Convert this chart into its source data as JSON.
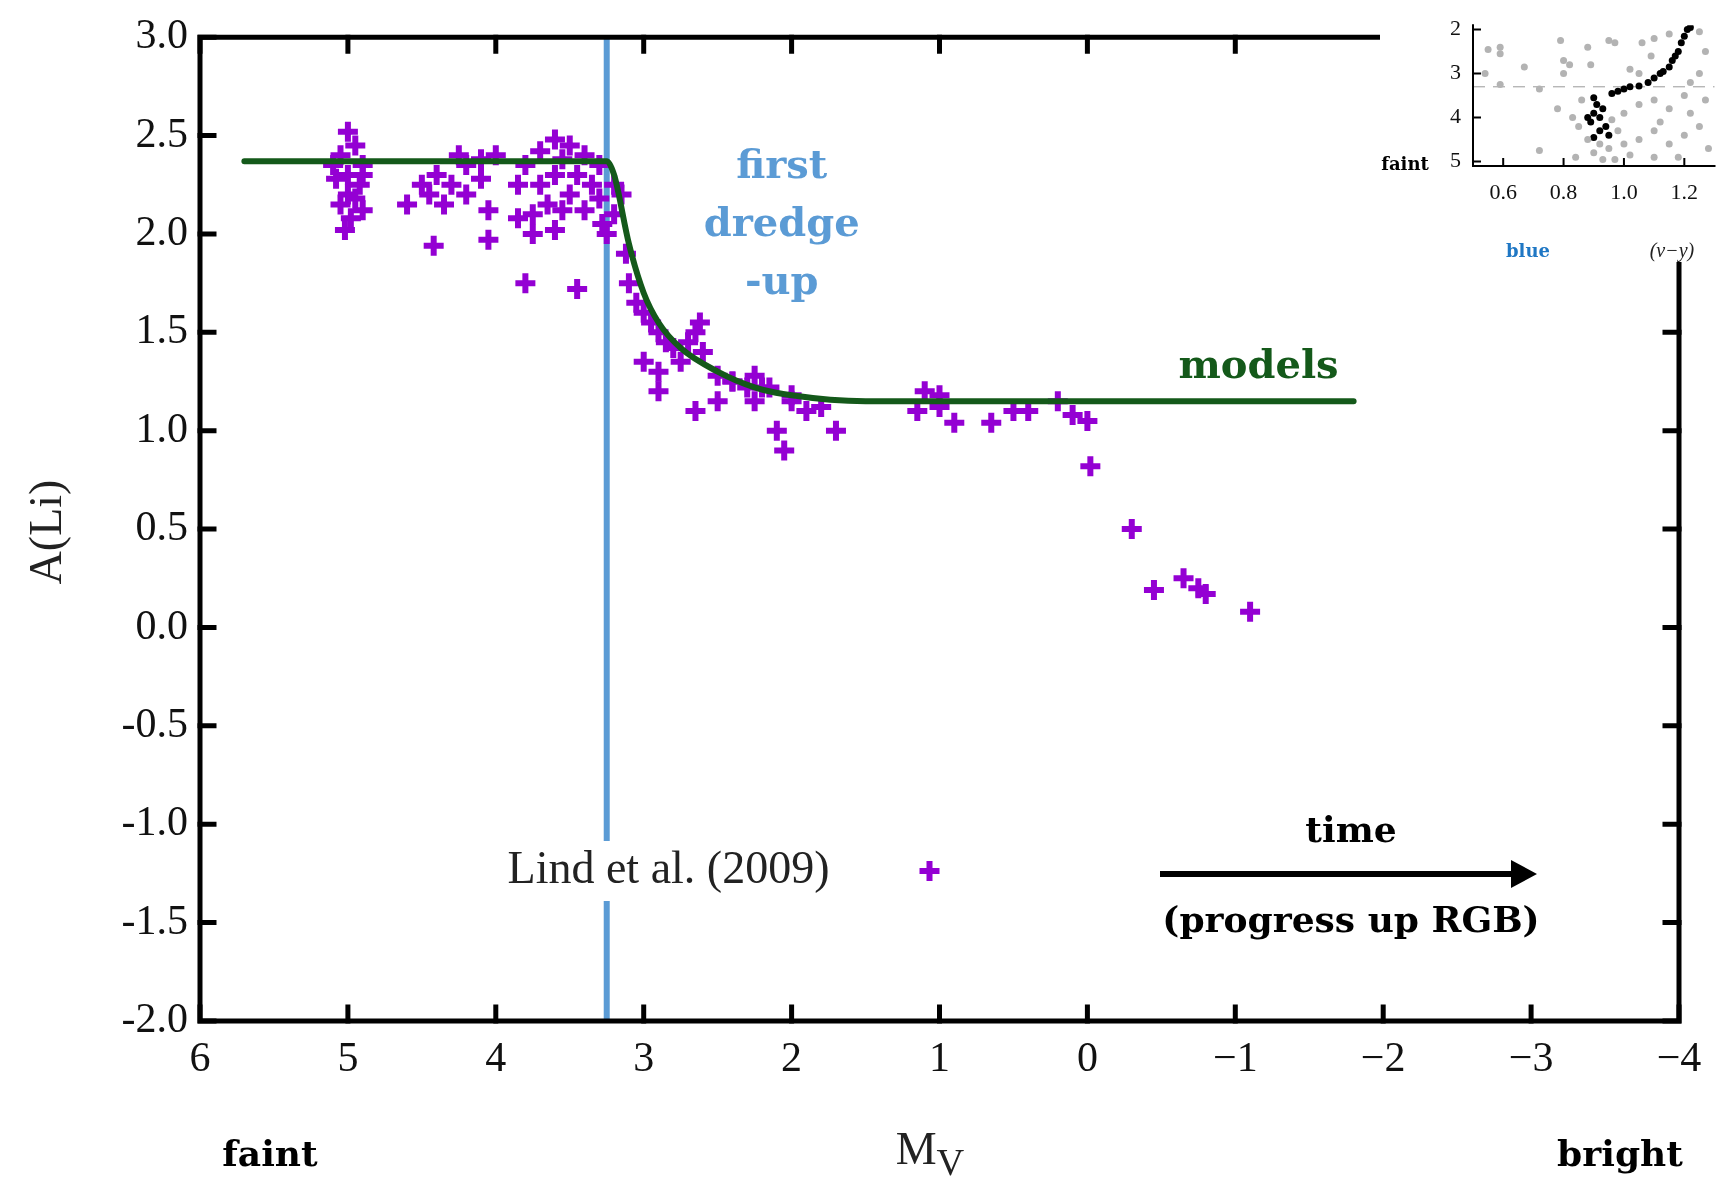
{
  "chart_data": [
    {
      "type": "scatter",
      "xlabel": "M$_{V}$",
      "ylabel": "A(Li)",
      "xlim": [
        6,
        -4
      ],
      "ylim": [
        -2,
        3
      ],
      "xticks": [
        6,
        5,
        4,
        3,
        2,
        1,
        0,
        {
          "value": -1,
          "label": "−1"
        },
        {
          "value": -2,
          "label": "−2"
        },
        {
          "value": -3,
          "label": "−3"
        },
        {
          "value": -4,
          "label": "−4"
        }
      ],
      "yticks": [
        {
          "value": -2,
          "label": "-2.0"
        },
        {
          "value": -1.5,
          "label": "-1.5"
        },
        {
          "value": -1,
          "label": "-1.0"
        },
        {
          "value": -0.5,
          "label": "-0.5"
        },
        {
          "value": 0,
          "label": "0.0"
        },
        {
          "value": 0.5,
          "label": "0.5"
        },
        {
          "value": 1,
          "label": "1.0"
        },
        {
          "value": 1.5,
          "label": "1.5"
        },
        {
          "value": 2,
          "label": "2.0"
        },
        {
          "value": 2.5,
          "label": "2.5"
        },
        {
          "value": 3,
          "label": "3.0"
        }
      ],
      "legend": "bottom",
      "marker": "cross",
      "series": [
        {
          "name": "Lind et al. (2009)",
          "color": "#9400d3",
          "x": [
            5.0,
            4.95,
            5.05,
            4.9,
            5.0,
            5.08,
            4.92,
            5.0,
            5.05,
            4.9,
            4.98,
            5.02,
            4.9,
            5.1,
            4.95,
            4.45,
            4.4,
            4.3,
            4.35,
            4.2,
            4.2,
            4.1,
            4.05,
            4.0,
            3.85,
            3.8,
            3.75,
            3.7,
            3.7,
            3.65,
            3.6,
            3.55,
            3.5,
            3.5,
            3.45,
            3.4,
            3.4,
            3.35,
            3.3,
            3.3,
            3.28,
            4.6,
            4.5,
            4.1,
            4.25,
            3.6,
            3.85,
            3.55,
            3.2,
            3.2,
            4.42,
            4.05,
            3.8,
            3.45,
            3.75,
            3.6,
            3.25,
            3.15,
            3.12,
            3.1,
            3.05,
            3.0,
            2.95,
            2.9,
            2.85,
            2.8,
            2.75,
            2.7,
            2.65,
            2.6,
            2.62,
            3.0,
            2.9,
            2.5,
            2.4,
            2.3,
            2.25,
            2.15,
            2.0,
            2.9,
            2.65,
            2.5,
            2.25,
            2.1,
            2.05,
            1.9,
            1.7,
            1.8,
            2.4,
            2.2,
            2.0,
            1.1,
            1.0,
            1.15,
            0.9,
            0.65,
            0.5,
            0.4,
            0.2,
            0.1,
            0.0,
            -0.02,
            -0.3,
            -0.45,
            -0.65,
            -0.75,
            -0.8,
            -1.1,
            1.0
          ],
          "values": [
            2.52,
            2.45,
            2.4,
            2.35,
            2.3,
            2.28,
            2.25,
            2.2,
            2.15,
            2.12,
            2.08,
            2.02,
            2.3,
            2.35,
            2.18,
            2.2,
            2.3,
            2.25,
            2.15,
            2.35,
            2.2,
            2.28,
            2.12,
            2.4,
            2.25,
            2.35,
            2.1,
            2.42,
            2.25,
            2.15,
            2.3,
            2.38,
            2.2,
            2.45,
            2.3,
            2.12,
            2.4,
            2.25,
            2.35,
            2.18,
            2.05,
            2.15,
            2.25,
            2.38,
            2.4,
            2.48,
            2.08,
            2.12,
            2.25,
            2.1,
            1.94,
            1.97,
            1.75,
            1.72,
            2.0,
            2.02,
            2.0,
            2.2,
            1.9,
            1.75,
            1.65,
            1.6,
            1.55,
            1.5,
            1.45,
            1.42,
            1.35,
            1.45,
            1.5,
            1.4,
            1.55,
            1.35,
            1.3,
            1.28,
            1.25,
            1.22,
            1.28,
            1.22,
            1.15,
            1.2,
            1.1,
            1.15,
            1.15,
            1.0,
            0.9,
            1.1,
            1.0,
            1.12,
            1.25,
            1.22,
            1.18,
            1.2,
            1.18,
            1.1,
            1.04,
            1.04,
            1.1,
            1.1,
            1.15,
            1.08,
            1.05,
            0.82,
            0.5,
            0.19,
            0.25,
            0.2,
            0.17,
            0.08,
            1.12
          ]
        },
        {
          "type": "line",
          "name": "models",
          "color": "#14591a",
          "marker": "none",
          "x": [
            5.7,
            3.25,
            3.2,
            3.1,
            3.0,
            2.9,
            2.75,
            2.5,
            2.25,
            2.0,
            1.5,
            -1.8
          ],
          "values": [
            2.37,
            2.37,
            2.3,
            1.95,
            1.7,
            1.55,
            1.42,
            1.3,
            1.22,
            1.18,
            1.15,
            1.15
          ]
        }
      ],
      "ref_lines": [
        {
          "axis": "x",
          "value": 3.25,
          "label": "first dredge -up",
          "color": "#5b9bd5",
          "line_style": "solid"
        }
      ],
      "annotations": [
        "time",
        "(progress up RGB)",
        "faint",
        "bright"
      ]
    },
    {
      "type": "scatter",
      "xlabel": "(v−y)",
      "xlim": [
        0.5,
        1.3
      ],
      "ylim": [
        5.1,
        1.9
      ],
      "xticks": [
        0.6,
        0.8,
        {
          "value": 1,
          "label": "1.0"
        },
        1.2
      ],
      "yticks": [
        2,
        3,
        4,
        5
      ],
      "marker": "circle",
      "series": [
        {
          "color": "#b3b3b3",
          "x": [
            0.54,
            0.55,
            0.59,
            0.59,
            0.59,
            0.67,
            0.72,
            0.79,
            0.8,
            0.8,
            0.82,
            0.89,
            0.95,
            0.97,
            0.88,
            1.06,
            1.1,
            1.09,
            1.02,
            1.05,
            1.15,
            1.25,
            1.27,
            1.25,
            1.22,
            1.2,
            1.1,
            1.05,
            1.15,
            1.0,
            0.96,
            0.98,
            0.92,
            0.9,
            0.93,
            0.95,
            0.88,
            1.0,
            1.02,
            1.05,
            1.1,
            1.15,
            1.2,
            1.25,
            1.28,
            1.18,
            1.1,
            0.85,
            0.83,
            0.78,
            0.86,
            0.84,
            0.72,
            0.97,
            1.22,
            1.27,
            1.12
          ],
          "values": [
            3.0,
            2.45,
            2.4,
            2.55,
            3.25,
            2.85,
            3.35,
            2.25,
            2.7,
            3.0,
            2.8,
            2.8,
            2.25,
            2.3,
            2.4,
            2.3,
            2.2,
            2.6,
            2.9,
            3.0,
            2.1,
            2.05,
            2.5,
            3.0,
            3.2,
            3.5,
            3.6,
            3.7,
            3.8,
            3.9,
            4.05,
            4.3,
            4.6,
            4.8,
            4.95,
            4.7,
            4.5,
            4.6,
            4.85,
            4.5,
            4.3,
            4.6,
            4.4,
            4.2,
            4.7,
            4.9,
            4.9,
            4.2,
            4.0,
            3.8,
            3.6,
            4.9,
            4.75,
            4.95,
            3.9,
            3.6,
            4.1
          ]
        },
        {
          "color": "#000000",
          "x": [
            0.9,
            0.95,
            0.89,
            0.9,
            0.91,
            0.9,
            0.93,
            0.94,
            0.92,
            0.96,
            1.0,
            1.05,
            1.08,
            1.1,
            1.12,
            1.15,
            1.16,
            1.18,
            1.19,
            1.2,
            1.21,
            1.22,
            0.88,
            0.92,
            0.98,
            1.02,
            1.13,
            1.17
          ],
          "values": [
            4.45,
            4.4,
            4.1,
            3.9,
            3.7,
            3.55,
            3.8,
            4.2,
            4.3,
            3.45,
            3.35,
            3.28,
            3.2,
            3.1,
            3.0,
            2.85,
            2.7,
            2.5,
            2.3,
            2.15,
            2.0,
            1.95,
            4.0,
            4.0,
            3.4,
            3.3,
            2.95,
            2.6
          ]
        }
      ],
      "ref_lines": [
        {
          "axis": "y",
          "value": 3.3,
          "color": "#999999",
          "line_style": "dashed"
        }
      ],
      "annotations": [
        "faint",
        "blue"
      ]
    }
  ]
}
